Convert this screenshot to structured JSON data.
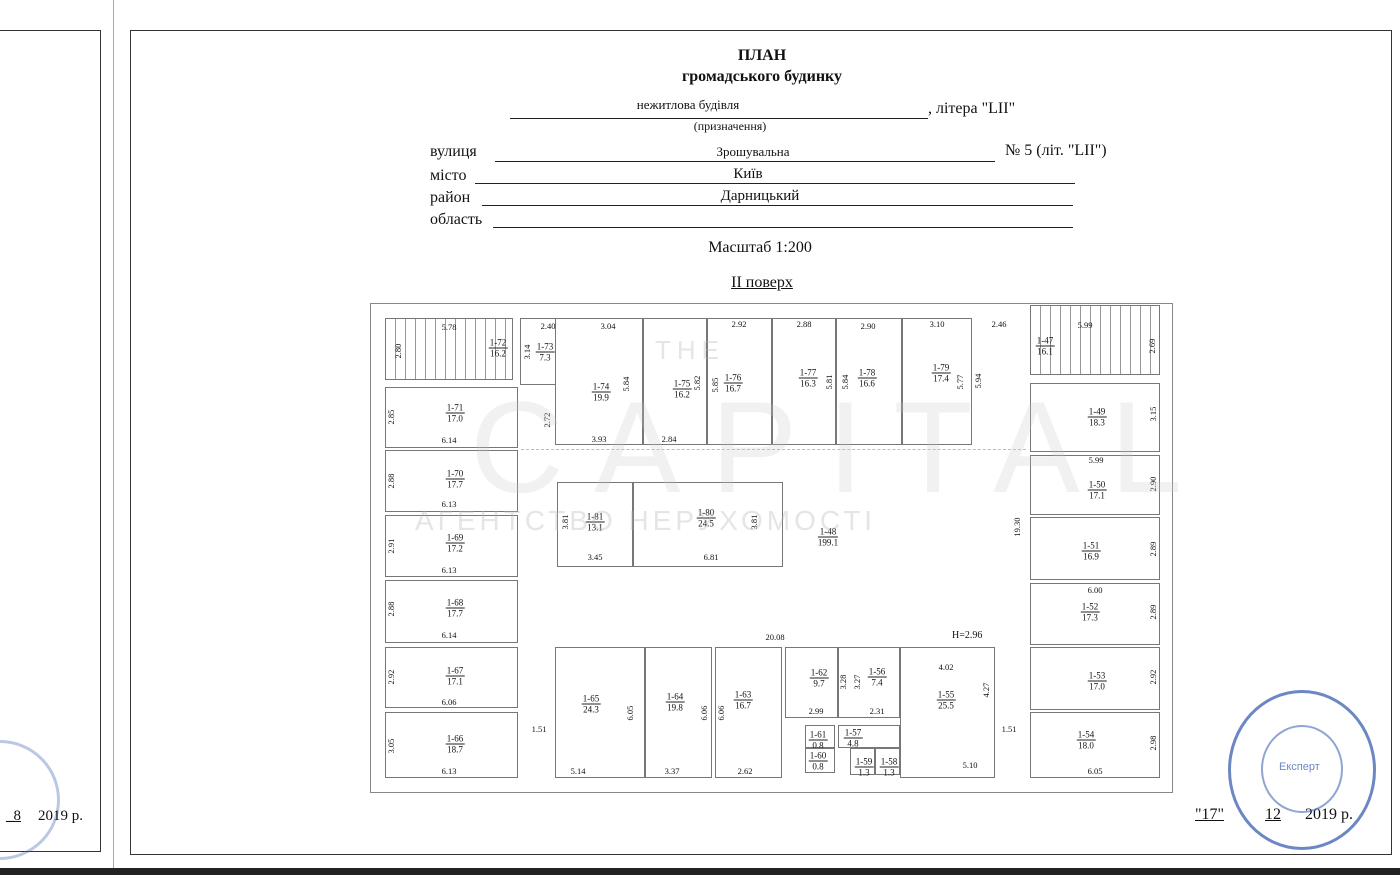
{
  "header": {
    "title": "ПЛАН",
    "subtitle": "громадського будинку",
    "purpose_value": "нежитлова будівля",
    "letter_label": ", літера \"LII\"",
    "purpose_caption": "(призначення)",
    "street_label": "вулиця",
    "street_value": "Зрошувальна",
    "number_label": "№ 5 (літ. \"LII\")",
    "city_label": "місто",
    "city_value": "Київ",
    "district_label": "район",
    "district_value": "Дарницький",
    "region_label": "область",
    "region_value": "",
    "scale": "Масштаб 1:200",
    "floor": "II поверх"
  },
  "plan": {
    "height_note": "H=2.96",
    "rooms": [
      {
        "id": "1-72",
        "area": "16.2"
      },
      {
        "id": "1-73",
        "area": "7.3"
      },
      {
        "id": "1-71",
        "area": "17.0"
      },
      {
        "id": "1-70",
        "area": "17.7"
      },
      {
        "id": "1-69",
        "area": "17.2"
      },
      {
        "id": "1-68",
        "area": "17.7"
      },
      {
        "id": "1-67",
        "area": "17.1"
      },
      {
        "id": "1-66",
        "area": "18.7"
      },
      {
        "id": "1-74",
        "area": "19.9"
      },
      {
        "id": "1-75",
        "area": "16.2"
      },
      {
        "id": "1-76",
        "area": "16.7"
      },
      {
        "id": "1-77",
        "area": "16.3"
      },
      {
        "id": "1-78",
        "area": "16.6"
      },
      {
        "id": "1-79",
        "area": "17.4"
      },
      {
        "id": "1-81",
        "area": "13.1"
      },
      {
        "id": "1-80",
        "area": "24.5"
      },
      {
        "id": "1-48",
        "area": "199.1"
      },
      {
        "id": "1-47",
        "area": "16.1"
      },
      {
        "id": "1-49",
        "area": "18.3"
      },
      {
        "id": "1-50",
        "area": "17.1"
      },
      {
        "id": "1-51",
        "area": "16.9"
      },
      {
        "id": "1-52",
        "area": "17.3"
      },
      {
        "id": "1-53",
        "area": "17.0"
      },
      {
        "id": "1-54",
        "area": "18.0"
      },
      {
        "id": "1-65",
        "area": "24.3"
      },
      {
        "id": "1-64",
        "area": "19.8"
      },
      {
        "id": "1-63",
        "area": "16.7"
      },
      {
        "id": "1-62",
        "area": "9.7"
      },
      {
        "id": "1-56",
        "area": "7.4"
      },
      {
        "id": "1-55",
        "area": "25.5"
      },
      {
        "id": "1-61",
        "area": "0.8"
      },
      {
        "id": "1-60",
        "area": "0.8"
      },
      {
        "id": "1-57",
        "area": "4.8"
      },
      {
        "id": "1-59",
        "area": "1.3"
      },
      {
        "id": "1-58",
        "area": "1.3"
      }
    ],
    "dimensions": [
      "5.78",
      "2.80",
      "2.40",
      "3.14",
      "3.04",
      "2.92",
      "2.88",
      "2.90",
      "3.10",
      "2.46",
      "5.99",
      "2.69",
      "5.84",
      "5.82",
      "5.85",
      "5.81",
      "5.84",
      "5.77",
      "5.94",
      "2.85",
      "6.14",
      "2.72",
      "3.93",
      "2.84",
      "3.15",
      "2.88",
      "6.13",
      "5.99",
      "2.90",
      "3.81",
      "3.81",
      "3.45",
      "6.81",
      "19.30",
      "2.91",
      "6.13",
      "2.89",
      "6.00",
      "2.88",
      "6.14",
      "2.89",
      "20.08",
      "2.92",
      "6.06",
      "4.02",
      "3.28",
      "3.27",
      "6.05",
      "6.06",
      "6.06",
      "4.27",
      "2.92",
      "2.99",
      "2.31",
      "1.51",
      "1.51",
      "3.05",
      "6.13",
      "5.14",
      "3.37",
      "2.62",
      "5.10",
      "6.05",
      "2.98"
    ]
  },
  "watermark": {
    "line1": "THE",
    "line2": "CAPITAL",
    "line3": "АГЕНТСТВО НЕРУХОМОСТІ"
  },
  "footer": {
    "left_date_day": "_8",
    "left_date_year": "2019 р.",
    "right_day": "\"17\"",
    "right_month": "12",
    "right_year": "2019 р.",
    "stamp_text": "Експерт"
  }
}
